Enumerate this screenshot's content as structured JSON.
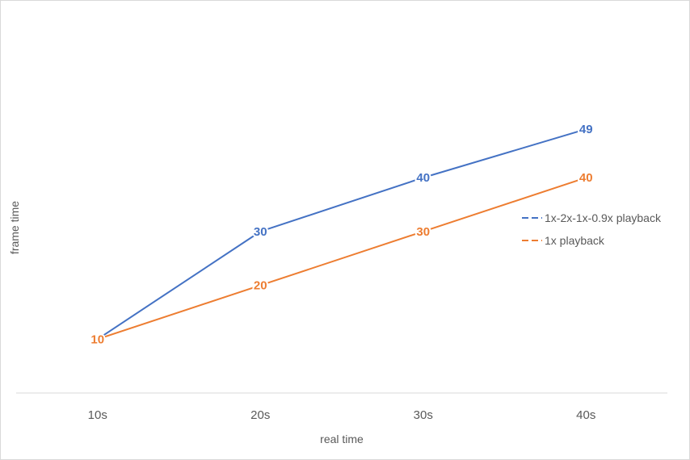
{
  "chart_data": {
    "type": "line",
    "categories": [
      "10s",
      "20s",
      "30s",
      "40s"
    ],
    "xlabel": "real time",
    "ylabel": "frame time",
    "ylim": [
      0,
      70
    ],
    "grid": false,
    "legend_position": "right",
    "series": [
      {
        "name": "1x-2x-1x-0.9x playback",
        "values": [
          10,
          30,
          40,
          49
        ],
        "color": "#4472C4"
      },
      {
        "name": "1x playback",
        "values": [
          10,
          20,
          30,
          40
        ],
        "color": "#ED7D31"
      }
    ]
  }
}
